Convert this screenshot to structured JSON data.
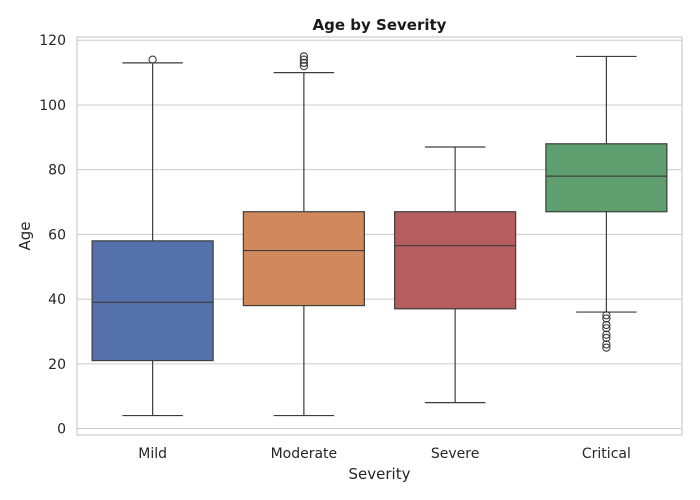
{
  "chart_data": {
    "type": "box",
    "title": "Age by Severity",
    "xlabel": "Severity",
    "ylabel": "Age",
    "ylim": [
      -2,
      121
    ],
    "yticks": [
      0,
      20,
      40,
      60,
      80,
      100,
      120
    ],
    "grid": true,
    "categories": [
      "Mild",
      "Moderate",
      "Severe",
      "Critical"
    ],
    "boxes": [
      {
        "category": "Mild",
        "whisker_low": 4,
        "q1": 21,
        "median": 39,
        "q3": 58,
        "whisker_high": 113,
        "outliers": [
          114
        ],
        "color": "#5471ab"
      },
      {
        "category": "Moderate",
        "whisker_low": 4,
        "q1": 38,
        "median": 55,
        "q3": 67,
        "whisker_high": 110,
        "outliers": [
          112,
          113,
          114,
          115
        ],
        "color": "#d1885c"
      },
      {
        "category": "Severe",
        "whisker_low": 8,
        "q1": 37,
        "median": 56.5,
        "q3": 67,
        "whisker_high": 87,
        "outliers": [],
        "color": "#b65d60"
      },
      {
        "category": "Critical",
        "whisker_low": 36,
        "q1": 67,
        "median": 78,
        "q3": 88,
        "whisker_high": 115,
        "outliers": [
          35,
          34,
          32,
          31,
          29,
          28,
          26,
          25
        ],
        "color": "#5f9e6e"
      }
    ]
  }
}
